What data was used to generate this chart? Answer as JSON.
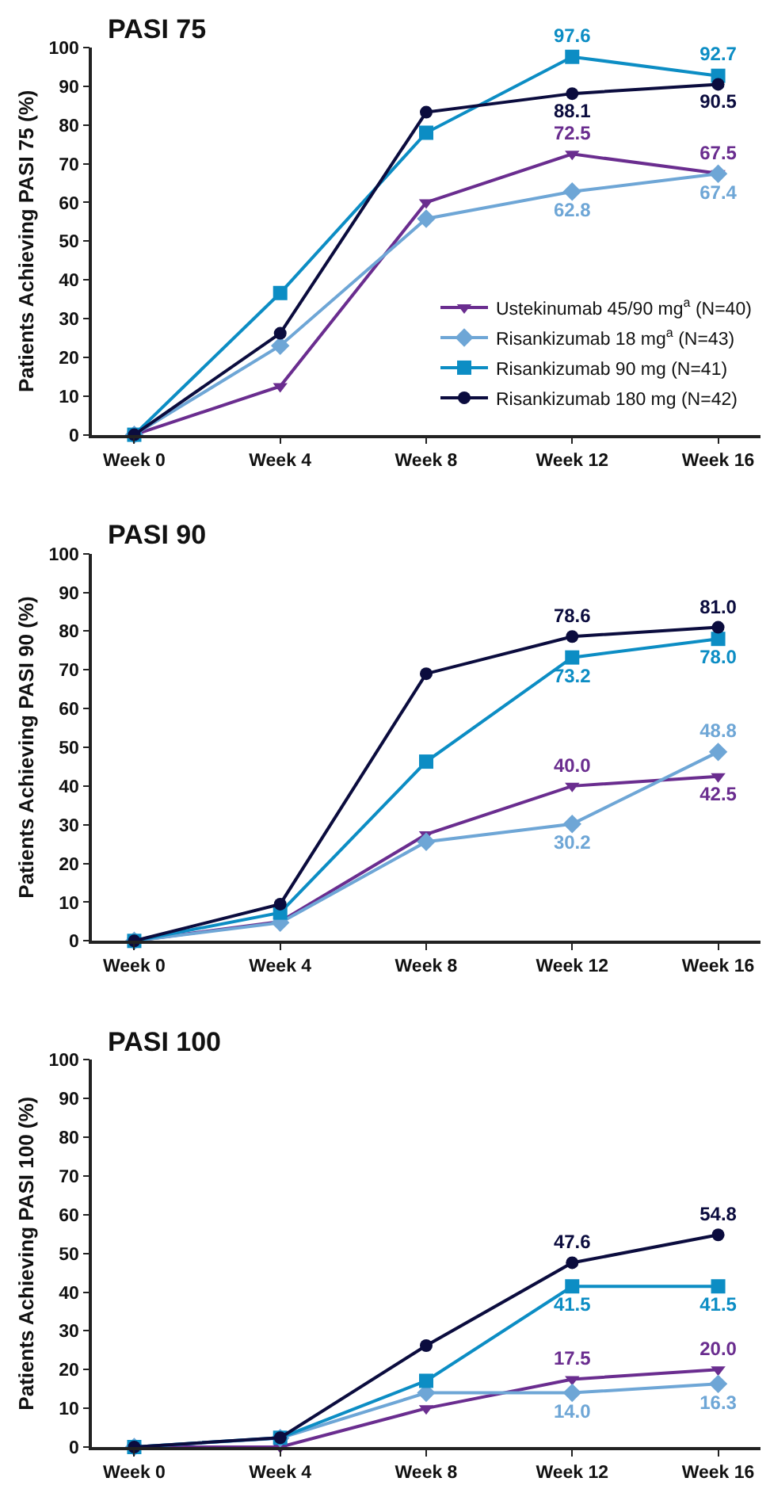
{
  "chart_data": [
    {
      "type": "line",
      "title": "PASI 75",
      "ylabel": "Patients Achieving PASI 75 (%)",
      "categories": [
        "Week 0",
        "Week 4",
        "Week 8",
        "Week 12",
        "Week 16"
      ],
      "ylim": [
        0,
        100
      ],
      "yticks": [
        0,
        10,
        20,
        30,
        40,
        50,
        60,
        70,
        80,
        90,
        100
      ],
      "grid": false,
      "legend": "bottom right",
      "series": [
        {
          "name": "Ustekinumab 45/90 mg$^{a}$ (N=40)",
          "color": "#6a2d8f",
          "marker": "triangle",
          "values": [
            0,
            12.5,
            60,
            72.5,
            67.5
          ],
          "value_labels": [
            null,
            null,
            null,
            "72.5",
            "67.5"
          ]
        },
        {
          "name": "Risankizumab 18 mg$^{a}$ (N=43)",
          "color": "#6ea6d6",
          "marker": "diamond",
          "values": [
            0,
            23,
            55.8,
            62.8,
            67.4
          ],
          "value_labels": [
            null,
            null,
            null,
            "62.8",
            "67.4"
          ]
        },
        {
          "name": "Risankizumab 90 mg (N=41)",
          "color": "#0c8dc4",
          "marker": "square",
          "values": [
            0,
            36.6,
            78,
            97.6,
            92.7
          ],
          "value_labels": [
            null,
            null,
            null,
            "97.6",
            "92.7"
          ]
        },
        {
          "name": "Risankizumab 180 mg (N=42)",
          "color": "#0b0c3e",
          "marker": "circle",
          "values": [
            0,
            26.2,
            83.3,
            88.1,
            90.5
          ],
          "value_labels": [
            null,
            null,
            null,
            "88.1",
            "90.5"
          ]
        }
      ]
    },
    {
      "type": "line",
      "title": "PASI 90",
      "ylabel": "Patients Achieving PASI 90 (%)",
      "categories": [
        "Week 0",
        "Week 4",
        "Week 8",
        "Week 12",
        "Week 16"
      ],
      "ylim": [
        0,
        100
      ],
      "yticks": [
        0,
        10,
        20,
        30,
        40,
        50,
        60,
        70,
        80,
        90,
        100
      ],
      "grid": false,
      "series": [
        {
          "color": "#6a2d8f",
          "marker": "triangle",
          "values": [
            0,
            5,
            27.5,
            40.0,
            42.5
          ],
          "value_labels": [
            null,
            null,
            null,
            "40.0",
            "42.5"
          ]
        },
        {
          "color": "#6ea6d6",
          "marker": "diamond",
          "values": [
            0,
            4.7,
            25.6,
            30.2,
            48.8
          ],
          "value_labels": [
            null,
            null,
            null,
            "30.2",
            "48.8"
          ]
        },
        {
          "color": "#0c8dc4",
          "marker": "square",
          "values": [
            0,
            7.3,
            46.3,
            73.2,
            78.0
          ],
          "value_labels": [
            null,
            null,
            null,
            "73.2",
            "78.0"
          ]
        },
        {
          "color": "#0b0c3e",
          "marker": "circle",
          "values": [
            0,
            9.5,
            69,
            78.6,
            81.0
          ],
          "value_labels": [
            null,
            null,
            null,
            "78.6",
            "81.0"
          ]
        }
      ]
    },
    {
      "type": "line",
      "title": "PASI 100",
      "ylabel": "Patients Achieving PASI 100 (%)",
      "categories": [
        "Week 0",
        "Week 4",
        "Week 8",
        "Week 12",
        "Week 16"
      ],
      "ylim": [
        0,
        100
      ],
      "yticks": [
        0,
        10,
        20,
        30,
        40,
        50,
        60,
        70,
        80,
        90,
        100
      ],
      "grid": false,
      "series": [
        {
          "color": "#6a2d8f",
          "marker": "triangle",
          "values": [
            0,
            0,
            10,
            17.5,
            20.0
          ],
          "value_labels": [
            null,
            null,
            null,
            "17.5",
            "20.0"
          ]
        },
        {
          "color": "#6ea6d6",
          "marker": "diamond",
          "values": [
            0,
            2.3,
            14,
            14.0,
            16.3
          ],
          "value_labels": [
            null,
            null,
            null,
            "14.0",
            "16.3"
          ]
        },
        {
          "color": "#0c8dc4",
          "marker": "square",
          "values": [
            0,
            2.4,
            17.1,
            41.5,
            41.5
          ],
          "value_labels": [
            null,
            null,
            null,
            "41.5",
            "41.5"
          ]
        },
        {
          "color": "#0b0c3e",
          "marker": "circle",
          "values": [
            0,
            2.4,
            26.2,
            47.6,
            54.8
          ],
          "value_labels": [
            null,
            null,
            null,
            "47.6",
            "54.8"
          ]
        }
      ]
    }
  ]
}
